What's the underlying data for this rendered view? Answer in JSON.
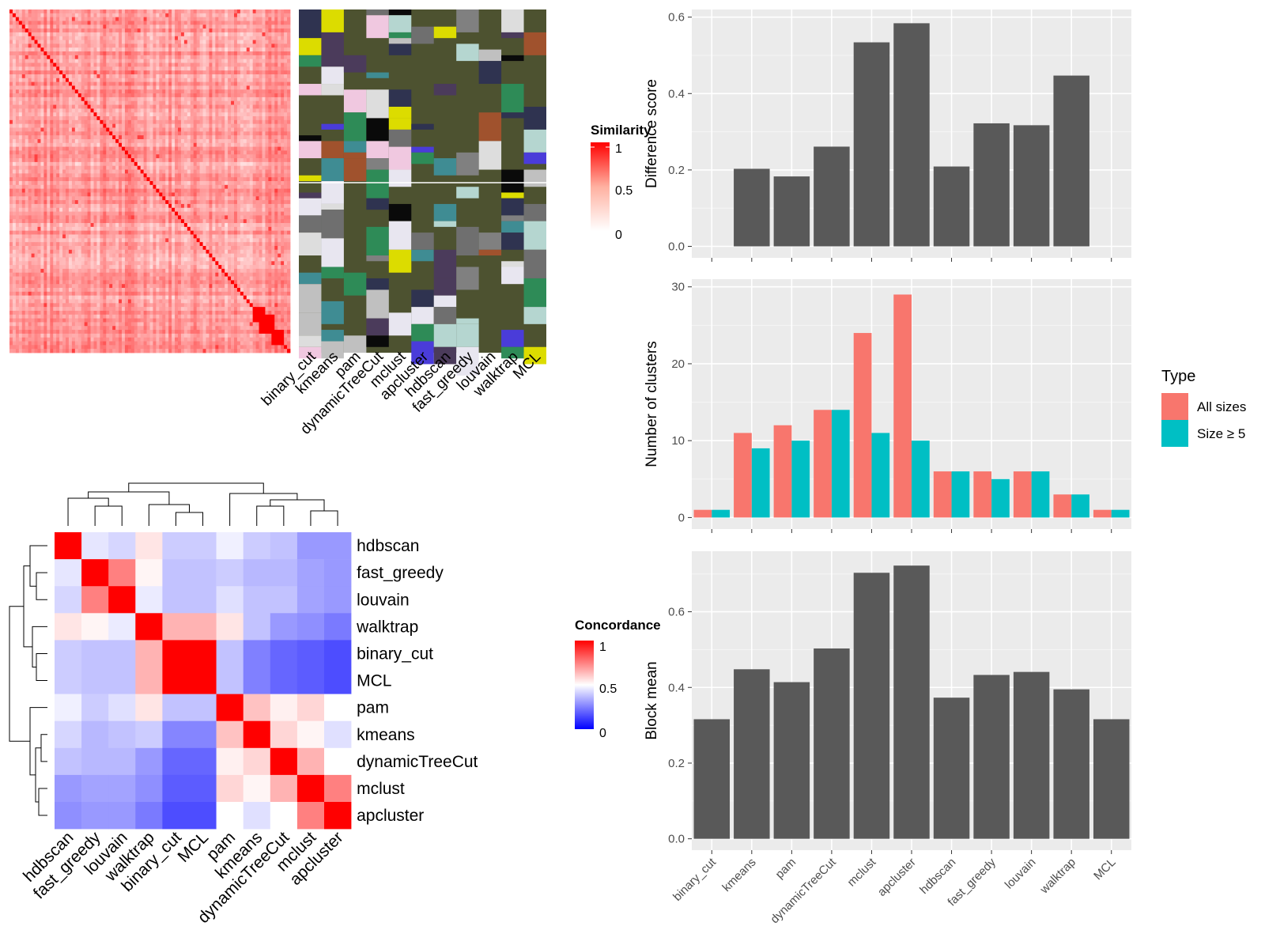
{
  "similarity_panel": {
    "legend_title": "Similarity",
    "legend_ticks": [
      "1",
      "0.5",
      "0"
    ],
    "method_labels": [
      "binary_cut",
      "kmeans",
      "pam",
      "dynamicTreeCut",
      "mclust",
      "apcluster",
      "hdbscan",
      "fast_greedy",
      "louvain",
      "walktrap",
      "MCL"
    ]
  },
  "concordance_panel": {
    "legend_title": "Concordance",
    "legend_ticks": [
      "1",
      "0.5",
      "0"
    ]
  },
  "colors": {
    "bar_fill": "#595959",
    "all_sizes": "#F8766D",
    "size_ge_5": "#00BFC4",
    "panel_bg": "#EBEBEB",
    "heat_high": "#FF0000",
    "heat_mid": "#FFFFFF",
    "heat_low": "#0000FF",
    "class_background": "#4D5230"
  },
  "chart_data": [
    {
      "type": "heatmap",
      "id": "concordance",
      "title": "",
      "legend_title": "Concordance",
      "scale": [
        0,
        0.5,
        1
      ],
      "rows": [
        "hdbscan",
        "fast_greedy",
        "louvain",
        "walktrap",
        "binary_cut",
        "MCL",
        "pam",
        "kmeans",
        "dynamicTreeCut",
        "mclust",
        "apcluster"
      ],
      "columns": [
        "hdbscan",
        "fast_greedy",
        "louvain",
        "walktrap",
        "binary_cut",
        "MCL",
        "pam",
        "kmeans",
        "dynamicTreeCut",
        "mclust",
        "apcluster"
      ],
      "values": [
        [
          1.0,
          0.45,
          0.42,
          0.55,
          0.4,
          0.4,
          0.47,
          0.4,
          0.38,
          0.3,
          0.3
        ],
        [
          0.45,
          1.0,
          0.75,
          0.52,
          0.38,
          0.38,
          0.4,
          0.36,
          0.36,
          0.32,
          0.3
        ],
        [
          0.42,
          0.75,
          1.0,
          0.46,
          0.38,
          0.38,
          0.44,
          0.38,
          0.38,
          0.32,
          0.3
        ],
        [
          0.55,
          0.52,
          0.46,
          1.0,
          0.65,
          0.65,
          0.55,
          0.38,
          0.3,
          0.28,
          0.24
        ],
        [
          0.4,
          0.38,
          0.38,
          0.65,
          1.0,
          1.0,
          0.38,
          0.25,
          0.2,
          0.18,
          0.15
        ],
        [
          0.4,
          0.38,
          0.38,
          0.65,
          1.0,
          1.0,
          0.38,
          0.25,
          0.2,
          0.18,
          0.15
        ],
        [
          0.47,
          0.4,
          0.44,
          0.55,
          0.38,
          0.38,
          1.0,
          0.62,
          0.53,
          0.58,
          0.5
        ],
        [
          0.42,
          0.36,
          0.38,
          0.4,
          0.26,
          0.26,
          0.62,
          1.0,
          0.58,
          0.52,
          0.44
        ],
        [
          0.38,
          0.36,
          0.36,
          0.3,
          0.2,
          0.2,
          0.53,
          0.58,
          1.0,
          0.65,
          0.5
        ],
        [
          0.3,
          0.32,
          0.32,
          0.28,
          0.18,
          0.18,
          0.58,
          0.52,
          0.65,
          1.0,
          0.75
        ],
        [
          0.28,
          0.3,
          0.3,
          0.24,
          0.15,
          0.15,
          0.5,
          0.44,
          0.5,
          0.75,
          1.0
        ]
      ]
    },
    {
      "type": "bar",
      "id": "difference_score",
      "title": "",
      "xlabel": "",
      "ylabel": "Difference score",
      "categories": [
        "binary_cut",
        "kmeans",
        "pam",
        "dynamicTreeCut",
        "mclust",
        "apcluster",
        "hdbscan",
        "fast_greedy",
        "louvain",
        "walktrap",
        "MCL"
      ],
      "values": [
        0,
        0.203,
        0.183,
        0.261,
        0.534,
        0.584,
        0.209,
        0.322,
        0.317,
        0.447,
        0
      ],
      "ylim": [
        -0.03,
        0.62
      ],
      "yticks": [
        0.0,
        0.2,
        0.4,
        0.6
      ],
      "ytick_labels": [
        "0.0",
        "0.2",
        "0.4",
        "0.6"
      ],
      "grid": true
    },
    {
      "type": "bar",
      "id": "number_of_clusters",
      "title": "",
      "xlabel": "",
      "ylabel": "Number of clusters",
      "categories": [
        "binary_cut",
        "kmeans",
        "pam",
        "dynamicTreeCut",
        "mclust",
        "apcluster",
        "hdbscan",
        "fast_greedy",
        "louvain",
        "walktrap",
        "MCL"
      ],
      "series": [
        {
          "name": "All sizes",
          "values": [
            1,
            11,
            12,
            14,
            24,
            29,
            6,
            6,
            6,
            3,
            1
          ]
        },
        {
          "name": "Size ≥ 5",
          "values": [
            1,
            9,
            10,
            14,
            11,
            10,
            6,
            5,
            6,
            3,
            1
          ]
        }
      ],
      "legend_title": "Type",
      "legend_position": "right",
      "ylim": [
        -1.5,
        31
      ],
      "yticks": [
        0,
        10,
        20,
        30
      ],
      "ytick_labels": [
        "0",
        "10",
        "20",
        "30"
      ],
      "grid": true
    },
    {
      "type": "bar",
      "id": "block_mean",
      "title": "",
      "xlabel": "",
      "ylabel": "Block mean",
      "categories": [
        "binary_cut",
        "kmeans",
        "pam",
        "dynamicTreeCut",
        "mclust",
        "apcluster",
        "hdbscan",
        "fast_greedy",
        "louvain",
        "walktrap",
        "MCL"
      ],
      "values": [
        0.316,
        0.448,
        0.414,
        0.503,
        0.703,
        0.722,
        0.373,
        0.433,
        0.441,
        0.395,
        0.316
      ],
      "ylim": [
        -0.03,
        0.76
      ],
      "yticks": [
        0.0,
        0.2,
        0.4,
        0.6
      ],
      "ytick_labels": [
        "0.0",
        "0.2",
        "0.4",
        "0.6"
      ],
      "grid": true
    }
  ]
}
